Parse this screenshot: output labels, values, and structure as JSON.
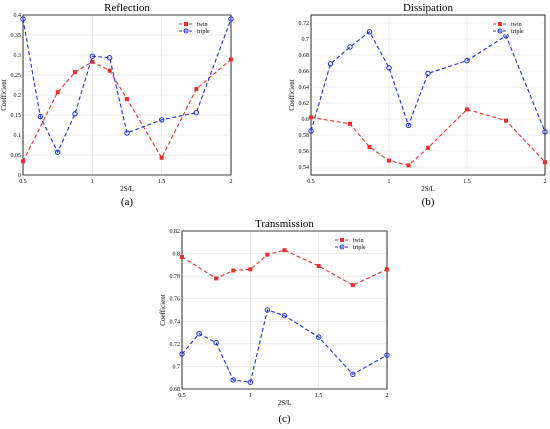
{
  "chart_data": [
    {
      "type": "line",
      "title": "Reflection",
      "xlabel": "2S/L",
      "ylabel": "Coefficient",
      "panel_label": "(a)",
      "xlim": [
        0.5,
        2
      ],
      "ylim": [
        0,
        0.4
      ],
      "xticks": [
        "0.5",
        "1",
        "1.5",
        "2"
      ],
      "yticks": [
        "0",
        "0.05",
        "0.1",
        "0.15",
        "0.2",
        "0.25",
        "0.3",
        "0.35",
        "0.4"
      ],
      "grid": true,
      "legend_position": "top-right",
      "series": [
        {
          "name": "twin",
          "color": "#e8302b",
          "marker": "square",
          "x": [
            0.5,
            0.75,
            0.875,
            1.0,
            1.125,
            1.25,
            1.5,
            1.75,
            2.0
          ],
          "y": [
            0.034,
            0.207,
            0.257,
            0.283,
            0.261,
            0.19,
            0.043,
            0.215,
            0.289
          ]
        },
        {
          "name": "triple",
          "color": "#1f2fd6",
          "marker": "circle",
          "x": [
            0.5,
            0.625,
            0.75,
            0.875,
            1.0,
            1.125,
            1.25,
            1.5,
            1.75,
            2.0
          ],
          "y": [
            0.39,
            0.146,
            0.057,
            0.153,
            0.297,
            0.293,
            0.105,
            0.138,
            0.156,
            0.39
          ]
        }
      ]
    },
    {
      "type": "line",
      "title": "Dissipation",
      "xlabel": "2S/L",
      "ylabel": "Coefficient",
      "panel_label": "(b)",
      "xlim": [
        0.5,
        2
      ],
      "ylim": [
        0.53,
        0.73
      ],
      "xticks": [
        "0.5",
        "1",
        "1.5",
        "2"
      ],
      "yticks": [
        "0.54",
        "0.56",
        "0.58",
        "0.6",
        "0.62",
        "0.64",
        "0.66",
        "0.68",
        "0.7",
        "0.72"
      ],
      "grid": true,
      "legend_position": "top-right",
      "series": [
        {
          "name": "twin",
          "color": "#e8302b",
          "marker": "square",
          "x": [
            0.5,
            0.75,
            0.875,
            1.0,
            1.125,
            1.25,
            1.5,
            1.75,
            2.0
          ],
          "y": [
            0.602,
            0.594,
            0.565,
            0.548,
            0.542,
            0.564,
            0.612,
            0.598,
            0.546
          ]
        },
        {
          "name": "triple",
          "color": "#1f2fd6",
          "marker": "circle",
          "x": [
            0.5,
            0.625,
            0.75,
            0.875,
            1.0,
            1.125,
            1.25,
            1.5,
            1.75,
            2.0
          ],
          "y": [
            0.585,
            0.669,
            0.69,
            0.709,
            0.664,
            0.592,
            0.657,
            0.673,
            0.704,
            0.584
          ]
        }
      ]
    },
    {
      "type": "line",
      "title": "Transmission",
      "xlabel": "2S/L",
      "ylabel": "Coefficient",
      "panel_label": "(c)",
      "xlim": [
        0.5,
        2
      ],
      "ylim": [
        0.68,
        0.82
      ],
      "xticks": [
        "0.5",
        "1",
        "1.5",
        "2"
      ],
      "yticks": [
        "0.68",
        "0.7",
        "0.72",
        "0.74",
        "0.76",
        "0.78",
        "0.8",
        "0.82"
      ],
      "grid": true,
      "legend_position": "top-right",
      "series": [
        {
          "name": "twin",
          "color": "#e8302b",
          "marker": "square",
          "x": [
            0.5,
            0.75,
            0.875,
            1.0,
            1.125,
            1.25,
            1.5,
            1.75,
            2.0
          ],
          "y": [
            0.797,
            0.778,
            0.785,
            0.786,
            0.799,
            0.803,
            0.789,
            0.772,
            0.786
          ]
        },
        {
          "name": "triple",
          "color": "#1f2fd6",
          "marker": "circle",
          "x": [
            0.5,
            0.625,
            0.75,
            0.875,
            1.0,
            1.125,
            1.25,
            1.5,
            1.75,
            2.0
          ],
          "y": [
            0.711,
            0.729,
            0.721,
            0.688,
            0.686,
            0.75,
            0.745,
            0.726,
            0.693,
            0.71
          ]
        }
      ]
    }
  ]
}
